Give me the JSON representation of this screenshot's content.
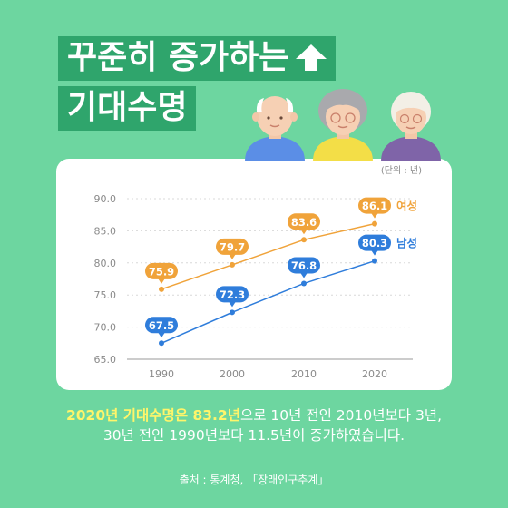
{
  "title": {
    "line1": "꾸준히 증가하는",
    "line2": "기대수명"
  },
  "icons": {
    "title_arrow": "up-arrow-icon"
  },
  "chart_data": {
    "type": "line",
    "unit_label": "(단위 : 년)",
    "x": [
      1990,
      2000,
      2010,
      2020
    ],
    "categories": [
      "1990",
      "2000",
      "2010",
      "2020"
    ],
    "yticks": [
      "90.0",
      "85.0",
      "80.0",
      "75.0",
      "70.0",
      "65.0"
    ],
    "ylim": [
      65,
      90
    ],
    "series": [
      {
        "name": "여성",
        "values": [
          75.9,
          79.7,
          83.6,
          86.1
        ],
        "labels": [
          "75.9",
          "79.7",
          "83.6",
          "86.1"
        ],
        "color": "#f0a33a"
      },
      {
        "name": "남성",
        "values": [
          67.5,
          72.3,
          76.8,
          80.3
        ],
        "labels": [
          "67.5",
          "72.3",
          "76.8",
          "80.3"
        ],
        "color": "#2f7ddb"
      }
    ]
  },
  "caption": {
    "highlight": "2020년 기대수명은 83.2년",
    "line1_rest": "으로 10년 전인 2010년보다 3년,",
    "line2": "30년 전인 1990년보다 11.5년이 증가하였습니다."
  },
  "source": "출처 : 통계청, 「장래인구추계」",
  "colors": {
    "background": "#6dd6a0",
    "title_band": "#2fa56c",
    "female": "#f0a33a",
    "male": "#2f7ddb",
    "highlight": "#fff56a"
  }
}
